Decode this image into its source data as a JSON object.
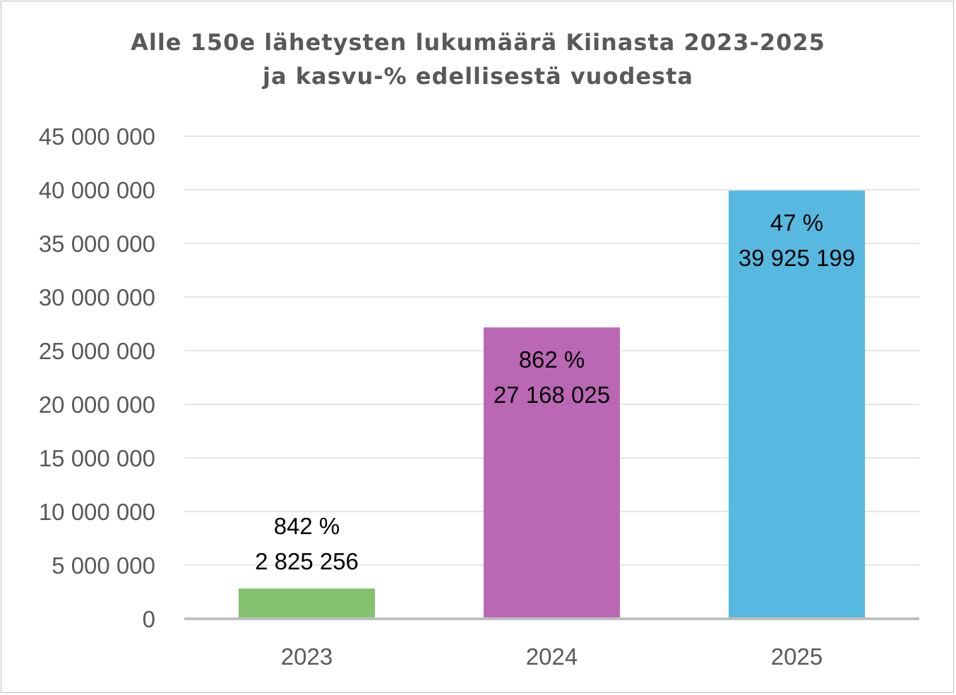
{
  "chart_data": {
    "type": "bar",
    "title_lines": [
      "Alle 150e lähetysten lukumäärä Kiinasta 2023-2025",
      "ja kasvu-% edellisestä vuodesta"
    ],
    "xlabel": "",
    "ylabel": "",
    "categories": [
      "2023",
      "2024",
      "2025"
    ],
    "values": [
      2825256,
      27168025,
      39925199
    ],
    "value_labels": [
      "2 825 256",
      "27 168 025",
      "39 925 199"
    ],
    "growth_labels": [
      "842 %",
      "862 %",
      "47 %"
    ],
    "colors": [
      "#84c26e",
      "#bb68b4",
      "#57b9e0"
    ],
    "ylim": [
      0,
      45000000
    ],
    "yticks": [
      0,
      5000000,
      10000000,
      15000000,
      20000000,
      25000000,
      30000000,
      35000000,
      40000000,
      45000000
    ],
    "ytick_labels": [
      "0",
      "5 000 000",
      "10 000 000",
      "15 000 000",
      "20 000 000",
      "25 000 000",
      "30 000 000",
      "35 000 000",
      "40 000 000",
      "45 000 000"
    ],
    "grid": true,
    "legend": "none",
    "colors_meta": {
      "gridline": "#e6e6e6",
      "axis": "#bfbfbf",
      "tick_text": "#595959",
      "label_text": "#000000"
    }
  }
}
